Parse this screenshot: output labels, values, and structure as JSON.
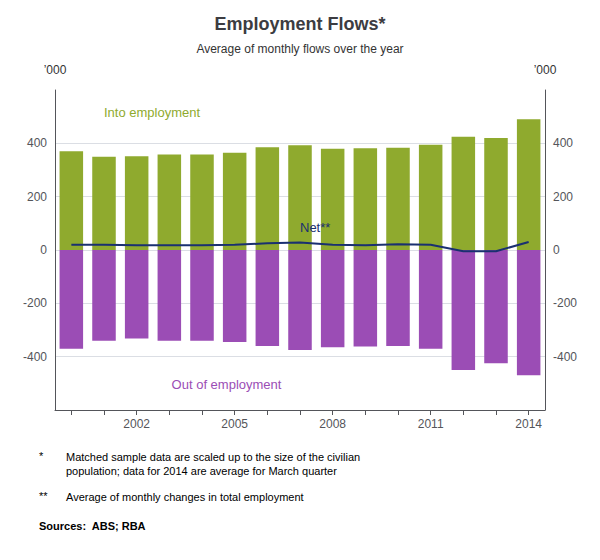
{
  "chart_data": {
    "type": "bar",
    "title": "Employment Flows*",
    "subtitle": "Average of monthly flows over the year",
    "categories": [
      null,
      null,
      "2002",
      null,
      null,
      "2005",
      null,
      null,
      "2008",
      null,
      null,
      "2011",
      null,
      null,
      "2014"
    ],
    "series": [
      {
        "name": "Into employment",
        "type": "bar",
        "color": "#8faa2e",
        "values": [
          370,
          350,
          352,
          358,
          358,
          365,
          385,
          393,
          380,
          382,
          383,
          395,
          425,
          420,
          490
        ]
      },
      {
        "name": "Out of employment",
        "type": "bar",
        "color": "#9b4db5",
        "values": [
          -370,
          -340,
          -332,
          -340,
          -340,
          -345,
          -360,
          -375,
          -365,
          -362,
          -360,
          -370,
          -450,
          -425,
          -470
        ]
      },
      {
        "name": "Net**",
        "type": "line",
        "color": "#1a3070",
        "values": [
          20,
          20,
          18,
          18,
          18,
          20,
          25,
          28,
          20,
          18,
          22,
          20,
          -5,
          -5,
          30
        ]
      }
    ],
    "ylim": [
      -600,
      600
    ],
    "yticks": [
      -400,
      -200,
      0,
      200,
      400
    ],
    "y2lim": [
      -600,
      600
    ],
    "y2ticks": [
      -400,
      -200,
      0,
      200,
      400
    ],
    "ylabel": "’000",
    "y2label": "’000",
    "grid": true,
    "footnotes": [
      {
        "mark": "*",
        "text": "Matched sample data are scaled up to the size of the civilian\npopulation; data for 2014 are average for March quarter"
      },
      {
        "mark": "**",
        "text": "Average of monthly changes in total employment"
      }
    ],
    "sources": "Sources:  ABS; RBA"
  }
}
